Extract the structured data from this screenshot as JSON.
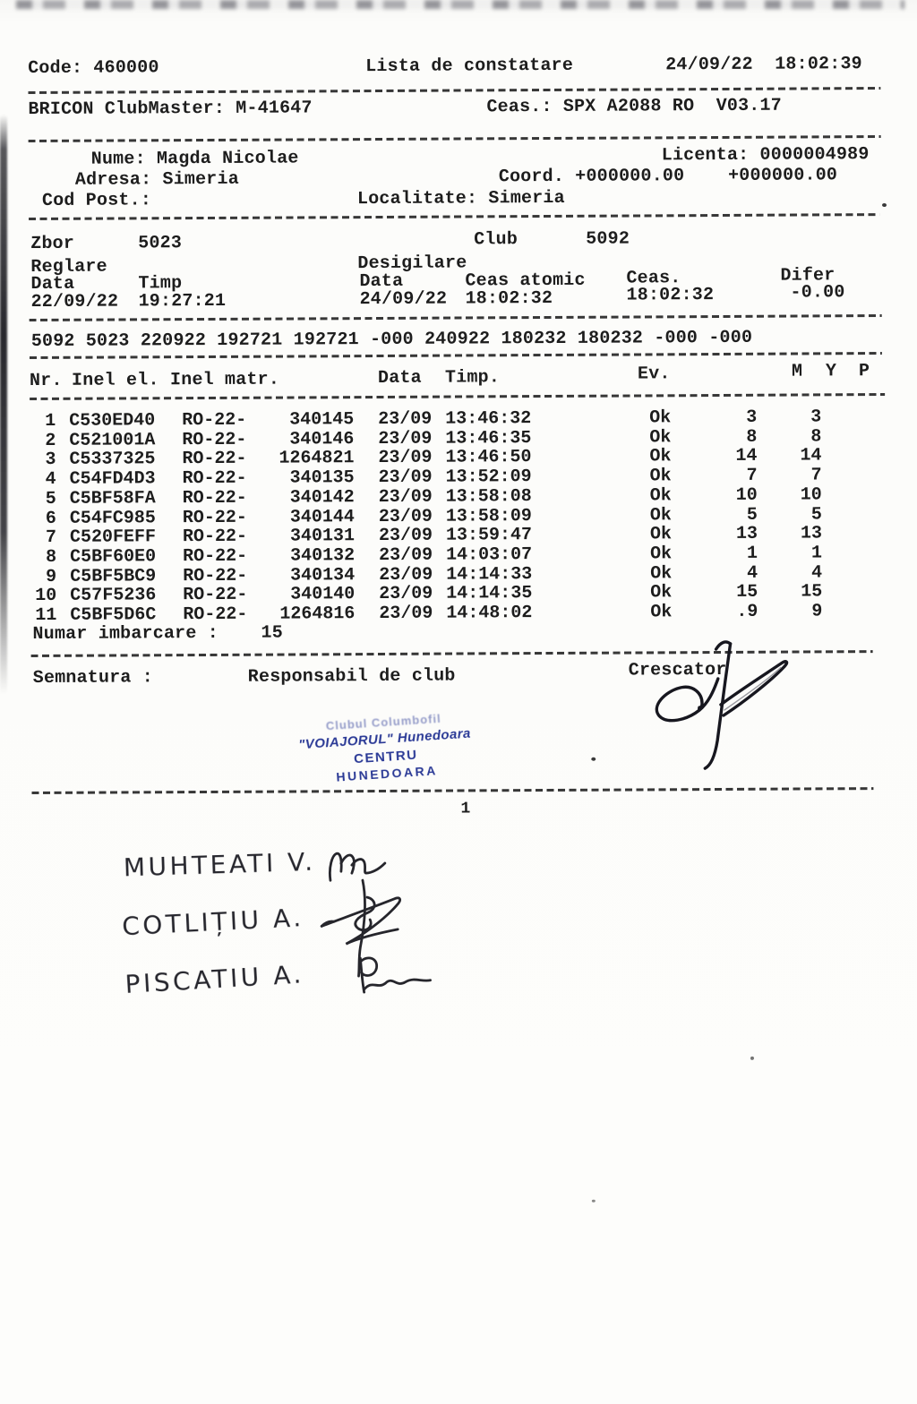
{
  "document": {
    "header": {
      "code": "Code: 460000",
      "title": "Lista de constatare",
      "datetime": "24/09/22  18:02:39"
    },
    "device_line": {
      "left": "BRICON ClubMaster: M-41647",
      "right": "Ceas.: SPX A2088 RO  V03.17"
    },
    "owner": {
      "nume": "Nume: Magda Nicolae",
      "licenta": "Licenta: 0000004989",
      "adresa": "Adresa: Simeria",
      "coord": "Coord. +000000.00    +000000.00",
      "cod_post": "Cod Post.:",
      "localitate": "Localitate: Simeria"
    },
    "flight": {
      "zbor_label": "Zbor",
      "zbor_value": "5023",
      "club_label": "Club",
      "club_value": "5092",
      "reglare_label": "Reglare",
      "desigilare_label": "Desigilare",
      "reglare_data_label": "Data",
      "reglare_timp_label": "Timp",
      "desig_data_label": "Data",
      "ceas_atomic_label": "Ceas atomic",
      "ceas_label": "Ceas.",
      "difer_label": "Difer",
      "reglare_data_value": "22/09/22",
      "reglare_timp_value": "19:27:21",
      "desig_data_value": "24/09/22",
      "ceas_atomic_value": "18:02:32",
      "ceas_value": "18:02:32",
      "difer_value": "-0.00"
    },
    "raw_line": "5092 5023 220922 192721 192721 -000 240922 180232 180232 -000 -000",
    "table": {
      "headers": {
        "nr": "Nr.",
        "inel_el": "Inel el.",
        "inel_matr": "Inel matr.",
        "data": "Data",
        "timp": "Timp.",
        "ev": "Ev.",
        "m": "M",
        "y": "Y",
        "p": "P"
      },
      "rows": [
        {
          "nr": "1",
          "inel_el": "C530ED40",
          "prefix": "RO-22-",
          "matr": "340145",
          "data": "23/09",
          "timp": "13:46:32",
          "ev": "Ok",
          "m": "3",
          "y": "3"
        },
        {
          "nr": "2",
          "inel_el": "C521001A",
          "prefix": "RO-22-",
          "matr": "340146",
          "data": "23/09",
          "timp": "13:46:35",
          "ev": "Ok",
          "m": "8",
          "y": "8"
        },
        {
          "nr": "3",
          "inel_el": "C5337325",
          "prefix": "RO-22-",
          "matr": "1264821",
          "data": "23/09",
          "timp": "13:46:50",
          "ev": "Ok",
          "m": "14",
          "y": "14"
        },
        {
          "nr": "4",
          "inel_el": "C54FD4D3",
          "prefix": "RO-22-",
          "matr": "340135",
          "data": "23/09",
          "timp": "13:52:09",
          "ev": "Ok",
          "m": "7",
          "y": "7"
        },
        {
          "nr": "5",
          "inel_el": "C5BF58FA",
          "prefix": "RO-22-",
          "matr": "340142",
          "data": "23/09",
          "timp": "13:58:08",
          "ev": "Ok",
          "m": "10",
          "y": "10"
        },
        {
          "nr": "6",
          "inel_el": "C54FC985",
          "prefix": "RO-22-",
          "matr": "340144",
          "data": "23/09",
          "timp": "13:58:09",
          "ev": "Ok",
          "m": "5",
          "y": "5"
        },
        {
          "nr": "7",
          "inel_el": "C520FEFF",
          "prefix": "RO-22-",
          "matr": "340131",
          "data": "23/09",
          "timp": "13:59:47",
          "ev": "Ok",
          "m": "13",
          "y": "13"
        },
        {
          "nr": "8",
          "inel_el": "C5BF60E0",
          "prefix": "RO-22-",
          "matr": "340132",
          "data": "23/09",
          "timp": "14:03:07",
          "ev": "Ok",
          "m": "1",
          "y": "1"
        },
        {
          "nr": "9",
          "inel_el": "C5BF5BC9",
          "prefix": "RO-22-",
          "matr": "340134",
          "data": "23/09",
          "timp": "14:14:33",
          "ev": "Ok",
          "m": "4",
          "y": "4"
        },
        {
          "nr": "10",
          "inel_el": "C57F5236",
          "prefix": "RO-22-",
          "matr": "340140",
          "data": "23/09",
          "timp": "14:14:35",
          "ev": "Ok",
          "m": "15",
          "y": "15"
        },
        {
          "nr": "11",
          "inel_el": "C5BF5D6C",
          "prefix": "RO-22-",
          "matr": "1264816",
          "data": "23/09",
          "timp": "14:48:02",
          "ev": "Ok",
          "m": ".9",
          "y": "9"
        }
      ]
    },
    "numar_imbarcare_label": "Numar imbarcare :",
    "numar_imbarcare_value": "15",
    "footer": {
      "semnatura": "Semnatura :",
      "responsabil": "Responsabil de club",
      "crescator": "Crescator"
    },
    "stamp": {
      "line1": "Clubul Columbofil",
      "line2": "\"VOIAJORUL\" Hunedoara",
      "line3": "CENTRU",
      "line4": "HUNEDOARA",
      "ink_color": "#2b3a96"
    },
    "page_number": "1",
    "handwriting": {
      "names": [
        "MUHTEATI V.",
        "COTLIȚIU A.",
        "PISCATIU A."
      ]
    }
  }
}
